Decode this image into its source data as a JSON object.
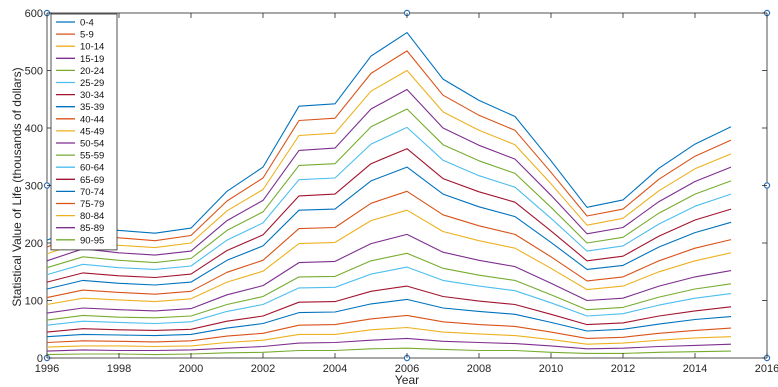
{
  "chart_data": {
    "type": "line",
    "title": "",
    "xlabel": "Year",
    "ylabel": "Statistical Value of Life (thousands of dollars)",
    "xlim": [
      1996,
      2016
    ],
    "ylim": [
      0,
      600
    ],
    "x_ticks": [
      1996,
      1998,
      2000,
      2002,
      2004,
      2006,
      2008,
      2010,
      2012,
      2014,
      2016
    ],
    "y_ticks": [
      0,
      100,
      200,
      300,
      400,
      500,
      600
    ],
    "grid": false,
    "legend_placement": "top-left",
    "x": [
      1996,
      1997,
      1998,
      1999,
      2000,
      2001,
      2002,
      2003,
      2004,
      2005,
      2006,
      2007,
      2008,
      2009,
      2010,
      2011,
      2012,
      2013,
      2014,
      2015
    ],
    "series": [
      {
        "name": "0-4",
        "color": "#0072BD",
        "values": [
          205,
          230,
          222,
          217,
          226,
          290,
          332,
          438,
          442,
          525,
          566,
          485,
          448,
          420,
          343,
          262,
          275,
          330,
          372,
          402
        ]
      },
      {
        "name": "5-9",
        "color": "#D95319",
        "values": [
          193,
          217,
          209,
          204,
          213,
          273,
          313,
          413,
          417,
          495,
          534,
          457,
          422,
          396,
          323,
          247,
          259,
          311,
          351,
          379
        ]
      },
      {
        "name": "10-14",
        "color": "#EDB120",
        "values": [
          181,
          203,
          196,
          192,
          200,
          256,
          293,
          387,
          391,
          464,
          500,
          428,
          396,
          371,
          303,
          231,
          243,
          291,
          329,
          355
        ]
      },
      {
        "name": "15-19",
        "color": "#7E2F8E",
        "values": [
          169,
          190,
          183,
          179,
          186,
          239,
          274,
          361,
          365,
          433,
          467,
          400,
          370,
          346,
          283,
          216,
          227,
          272,
          307,
          332
        ]
      },
      {
        "name": "20-24",
        "color": "#77AC30",
        "values": [
          157,
          176,
          170,
          166,
          173,
          222,
          254,
          335,
          338,
          402,
          433,
          371,
          343,
          321,
          262,
          200,
          210,
          252,
          285,
          308
        ]
      },
      {
        "name": "25-29",
        "color": "#4DBEEE",
        "values": [
          145,
          163,
          157,
          154,
          160,
          205,
          235,
          310,
          313,
          372,
          401,
          344,
          317,
          297,
          243,
          186,
          195,
          233,
          264,
          285
        ]
      },
      {
        "name": "30-34",
        "color": "#A2142F",
        "values": [
          132,
          148,
          143,
          140,
          146,
          187,
          214,
          282,
          285,
          338,
          364,
          312,
          289,
          271,
          221,
          169,
          177,
          212,
          240,
          259
        ]
      },
      {
        "name": "35-39",
        "color": "#0072BD",
        "values": [
          120,
          135,
          130,
          127,
          132,
          170,
          195,
          257,
          259,
          308,
          332,
          285,
          263,
          246,
          201,
          154,
          161,
          193,
          218,
          236
        ]
      },
      {
        "name": "40-44",
        "color": "#D95319",
        "values": [
          105,
          118,
          114,
          111,
          116,
          149,
          170,
          225,
          227,
          269,
          290,
          249,
          230,
          215,
          176,
          134,
          141,
          169,
          191,
          206
        ]
      },
      {
        "name": "45-49",
        "color": "#EDB120",
        "values": [
          93,
          104,
          101,
          98,
          103,
          132,
          151,
          199,
          201,
          239,
          257,
          220,
          204,
          191,
          156,
          119,
          125,
          150,
          169,
          183
        ]
      },
      {
        "name": "50-54",
        "color": "#7E2F8E",
        "values": [
          78,
          87,
          84,
          82,
          86,
          110,
          126,
          166,
          168,
          199,
          215,
          184,
          170,
          159,
          130,
          100,
          104,
          125,
          141,
          152
        ]
      },
      {
        "name": "55-59",
        "color": "#77AC30",
        "values": [
          66,
          74,
          71,
          70,
          73,
          93,
          107,
          141,
          142,
          169,
          182,
          156,
          144,
          135,
          110,
          84,
          88,
          106,
          120,
          129
        ]
      },
      {
        "name": "60-64",
        "color": "#4DBEEE",
        "values": [
          57,
          64,
          62,
          60,
          63,
          81,
          93,
          122,
          123,
          146,
          158,
          135,
          125,
          117,
          96,
          73,
          77,
          92,
          104,
          112
        ]
      },
      {
        "name": "65-69",
        "color": "#A2142F",
        "values": [
          45,
          51,
          49,
          48,
          50,
          64,
          73,
          97,
          98,
          116,
          125,
          107,
          99,
          93,
          76,
          58,
          61,
          73,
          82,
          89
        ]
      },
      {
        "name": "70-74",
        "color": "#0072BD",
        "values": [
          37,
          41,
          40,
          39,
          41,
          52,
          60,
          79,
          80,
          94,
          102,
          87,
          81,
          76,
          62,
          47,
          50,
          59,
          67,
          72
        ]
      },
      {
        "name": "75-79",
        "color": "#D95319",
        "values": [
          27,
          30,
          29,
          28,
          30,
          38,
          43,
          57,
          58,
          68,
          74,
          63,
          58,
          55,
          45,
          34,
          36,
          43,
          48,
          52
        ]
      },
      {
        "name": "80-84",
        "color": "#EDB120",
        "values": [
          19,
          21,
          21,
          20,
          21,
          27,
          31,
          41,
          41,
          49,
          53,
          45,
          42,
          39,
          32,
          24,
          26,
          31,
          35,
          37
        ]
      },
      {
        "name": "85-89",
        "color": "#7E2F8E",
        "values": [
          12,
          14,
          13,
          13,
          14,
          17,
          20,
          26,
          27,
          31,
          34,
          29,
          27,
          25,
          21,
          16,
          17,
          20,
          22,
          24
        ]
      },
      {
        "name": "90-95",
        "color": "#77AC30",
        "values": [
          6,
          7,
          7,
          6,
          7,
          9,
          10,
          13,
          13,
          16,
          17,
          15,
          13,
          13,
          10,
          8,
          8,
          10,
          11,
          12
        ]
      }
    ]
  }
}
